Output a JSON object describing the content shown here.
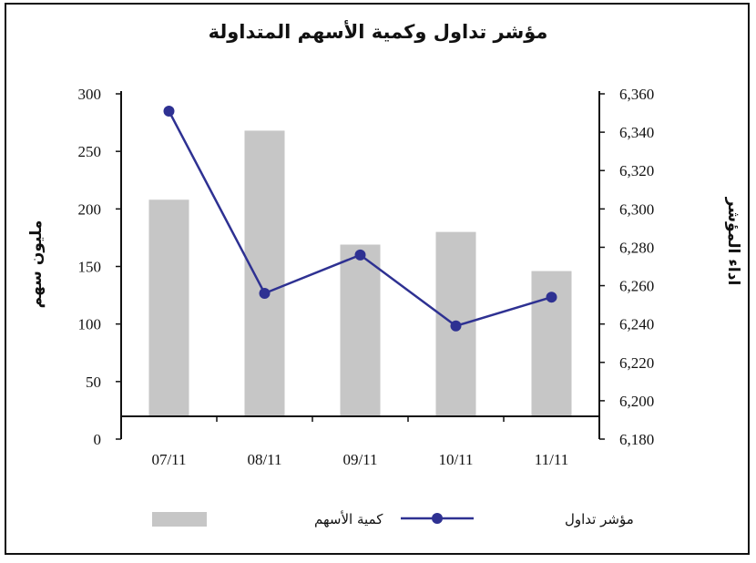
{
  "chart_data": {
    "type": "bar+line",
    "title": "مؤشر تداول وكمية الأسهم المتداولة",
    "categories": [
      "07/11",
      "08/11",
      "09/11",
      "10/11",
      "11/11"
    ],
    "series": [
      {
        "name": "كمية الأسهم",
        "type": "bar",
        "axis": "left",
        "color": "#c6c6c6",
        "values": [
          208,
          268,
          169,
          180,
          146
        ]
      },
      {
        "name": "مؤشر تداول",
        "type": "line",
        "axis": "right",
        "color": "#2e3192",
        "values": [
          6351,
          6256,
          6276,
          6239,
          6254
        ]
      }
    ],
    "y_left": {
      "label": "مليون سهم",
      "ticks": [
        "300",
        "250",
        "200",
        "150",
        "100",
        "50",
        "0"
      ],
      "lim": [
        0,
        300
      ]
    },
    "y_right": {
      "label": "اداء المؤشر",
      "ticks": [
        "6,360",
        "6,340",
        "6,320",
        "6,300",
        "6,280",
        "6,260",
        "6,240",
        "6,220",
        "6,200",
        "6,180"
      ],
      "lim": [
        6180,
        6360
      ]
    },
    "grid": false,
    "legend_position": "bottom"
  }
}
